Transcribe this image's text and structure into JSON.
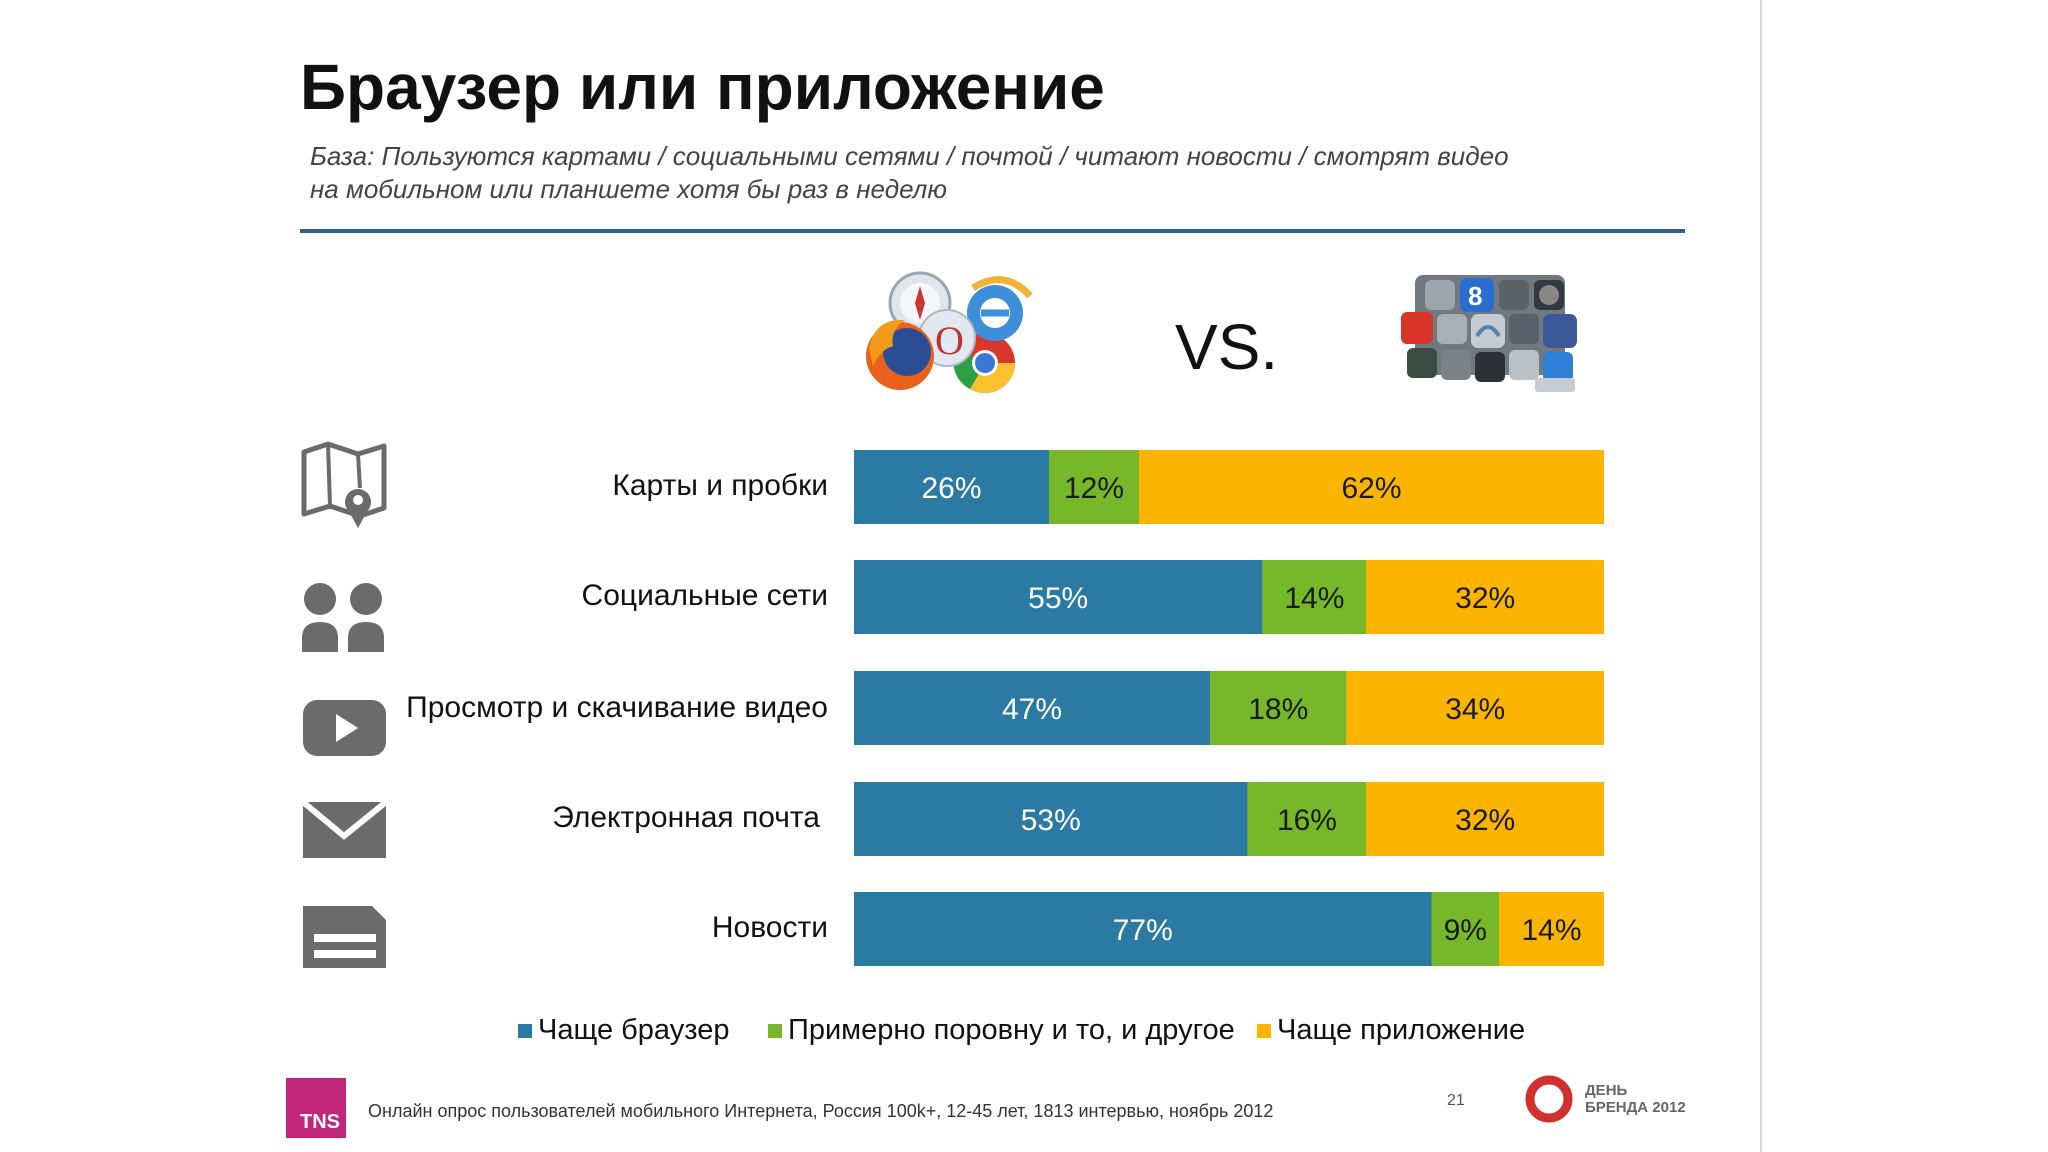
{
  "slide": {
    "title": "Браузер или приложение",
    "subtitle_line1": "База: Пользуются картами / социальными сетями / почтой / читают новости / смотрят видео",
    "subtitle_line2": "на мобильном или планшете хотя бы раз в неделю",
    "vs_label": "VS.",
    "footer_note": "Онлайн опрос пользователей мобильного Интернета, Россия 100k+, 12-45 лет, 1813 интервью, ноябрь 2012",
    "page_number": "21",
    "tns_logo_text": "TNS",
    "brand_logo_line1": "ДЕНЬ",
    "brand_logo_line2": "БРЕНДА 2012"
  },
  "chart_data": {
    "type": "bar",
    "orientation": "horizontal",
    "stacked": true,
    "normalized": true,
    "categories": [
      "Карты и пробки",
      "Социальные сети",
      "Просмотр и скачивание видео",
      "Электронная почта",
      "Новости"
    ],
    "series": [
      {
        "name": "Чаще браузер",
        "color": "#2b7aa3",
        "values": [
          26,
          55,
          47,
          53,
          77
        ]
      },
      {
        "name": "Примерно поровну и то, и другое",
        "color": "#76b82a",
        "values": [
          12,
          14,
          18,
          16,
          9
        ]
      },
      {
        "name": "Чаще приложение",
        "color": "#fbb400",
        "values": [
          62,
          32,
          34,
          32,
          14
        ]
      }
    ],
    "value_suffix": "%",
    "xlim": [
      0,
      100
    ],
    "legend_position": "bottom",
    "grid": false,
    "row_icons": [
      "map-pin-icon",
      "users-icon",
      "video-play-icon",
      "mail-icon",
      "news-icon"
    ]
  }
}
